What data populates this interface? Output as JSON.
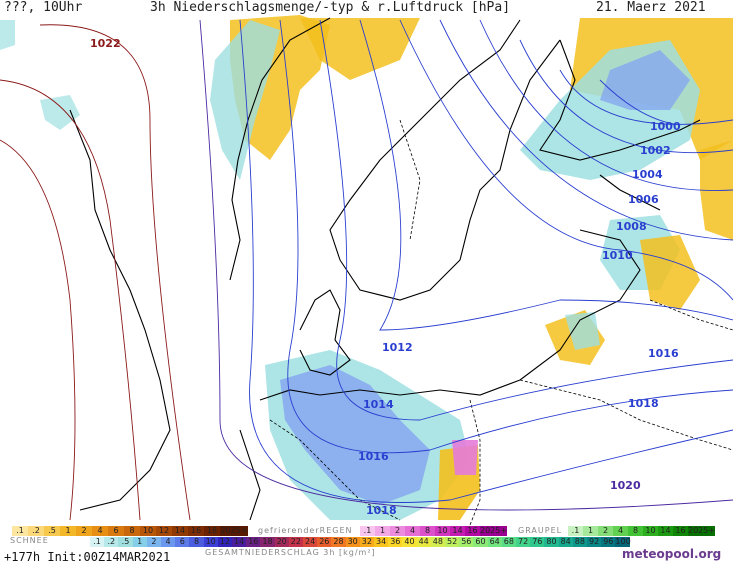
{
  "header": {
    "left": "???, 10Uhr",
    "title": "3h Niederschlagsmenge/-typ & r.Luftdruck [hPa]",
    "date": "21. Maerz 2021"
  },
  "isobars": [
    {
      "label": "1022",
      "color": "#8b1a1a"
    },
    {
      "label": "1000",
      "color": "#2a3fd0"
    },
    {
      "label": "1002",
      "color": "#2a3fd0"
    },
    {
      "label": "1004",
      "color": "#2a3fd0"
    },
    {
      "label": "1006",
      "color": "#2a3fd0"
    },
    {
      "label": "1008",
      "color": "#2a3fd0"
    },
    {
      "label": "1010",
      "color": "#2a3fd0"
    },
    {
      "label": "1012",
      "color": "#2a3fd0"
    },
    {
      "label": "1014",
      "color": "#2a3fd0"
    },
    {
      "label": "1016",
      "color": "#2a3fd0"
    },
    {
      "label": "1016",
      "color": "#2a3fd0"
    },
    {
      "label": "1018",
      "color": "#2a3fd0"
    },
    {
      "label": "1018",
      "color": "#2a3fd0"
    },
    {
      "label": "1020",
      "color": "#4b2aa0"
    }
  ],
  "legend": {
    "snow_label": "SCHNEE",
    "snow_values": [
      ".1",
      ".2",
      ".5",
      "1",
      "2",
      "4",
      "6",
      "8",
      "10",
      "12",
      "14",
      "16",
      "18",
      "2025+"
    ],
    "frz_label": "gefrierenderREGEN",
    "frz_values": [
      ".1",
      "1",
      "2",
      "4",
      "8",
      "10",
      "14",
      "16",
      "2025+"
    ],
    "graupel_label": "GRAUPEL",
    "graupel_values": [
      ".1",
      "1",
      "2",
      "4",
      "8",
      "10",
      "14",
      "16",
      "2025+"
    ],
    "total_label": "GESAMTNIEDERSCHLAG 3h [kg/m²]",
    "total_values": [
      ".1",
      ".2",
      ".5",
      "1",
      "2",
      "4",
      "6",
      "8",
      "10",
      "12",
      "14",
      "16",
      "18",
      "20",
      "22",
      "24",
      "26",
      "28",
      "30",
      "32",
      "34",
      "36",
      "40",
      "44",
      "48",
      "52",
      "56",
      "60",
      "64",
      "68",
      "72",
      "76",
      "80",
      "84",
      "88",
      "92",
      "96",
      "100"
    ]
  },
  "footer": {
    "run": "+177h Init:00Z14MAR2021",
    "logo": "meteopool.org"
  },
  "colors": {
    "land_bg": "#ffffff",
    "rain_light": "#9fdfe0",
    "rain_mid": "#86a8f0",
    "snow": "#f3c01e",
    "freezing": "#e57bd8",
    "isobar_high": "#8b1a1a",
    "isobar_low": "#2a3fd0"
  }
}
